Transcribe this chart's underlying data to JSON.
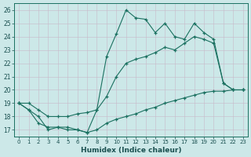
{
  "xlabel": "Humidex (Indice chaleur)",
  "bg_color": "#cce8e8",
  "grid_color": "#b0d4d4",
  "line_color": "#1a7060",
  "xlim": [
    -0.5,
    23.5
  ],
  "ylim": [
    16.5,
    26.5
  ],
  "yticks": [
    17,
    18,
    19,
    20,
    21,
    22,
    23,
    24,
    25,
    26
  ],
  "xticks": [
    0,
    1,
    2,
    3,
    4,
    5,
    6,
    7,
    8,
    9,
    10,
    11,
    12,
    13,
    14,
    15,
    16,
    17,
    18,
    19,
    20,
    21,
    22,
    23
  ],
  "line1_y": [
    19.0,
    18.5,
    18.0,
    17.0,
    17.2,
    17.2,
    17.0,
    16.8,
    18.5,
    22.5,
    24.2,
    26.0,
    25.4,
    25.3,
    24.3,
    25.0,
    24.0,
    23.8,
    25.0,
    24.3,
    23.8,
    20.5,
    20.0,
    20.0
  ],
  "line2_y": [
    19.0,
    19.0,
    18.5,
    18.0,
    18.0,
    18.0,
    18.2,
    18.3,
    18.5,
    19.5,
    21.0,
    22.0,
    22.3,
    22.5,
    22.8,
    23.2,
    23.0,
    23.5,
    24.0,
    23.8,
    23.5,
    20.5,
    20.0,
    20.0
  ],
  "line3_y": [
    19.0,
    18.5,
    17.5,
    17.2,
    17.2,
    17.0,
    17.0,
    16.8,
    17.0,
    17.5,
    17.8,
    18.0,
    18.2,
    18.5,
    18.7,
    19.0,
    19.2,
    19.4,
    19.6,
    19.8,
    19.9,
    19.9,
    20.0,
    20.0
  ]
}
